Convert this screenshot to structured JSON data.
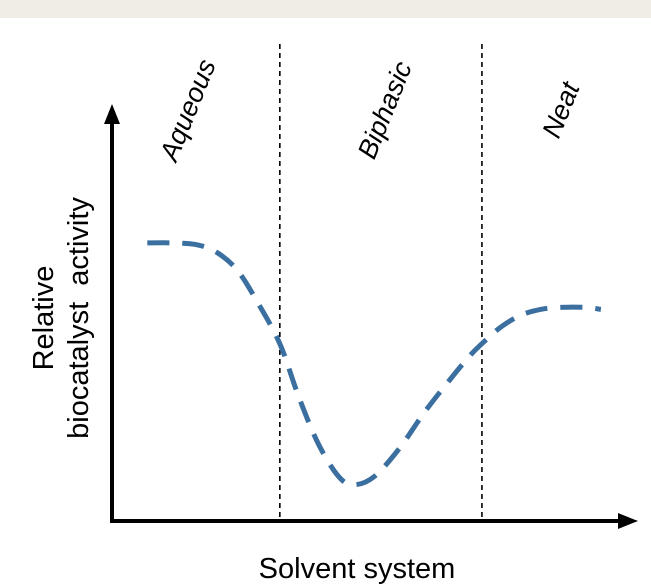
{
  "chart_data": {
    "type": "line",
    "title": "",
    "xlabel": "Solvent system",
    "ylabel_lines": [
      "Relative",
      "biocatalyst  activity"
    ],
    "regions": [
      {
        "label": "Aqueous",
        "x_start": 0.0,
        "x_end": 0.333
      },
      {
        "label": "Biphasic",
        "x_start": 0.333,
        "x_end": 0.734
      },
      {
        "label": "Neat",
        "x_start": 0.734,
        "x_end": 1.0
      }
    ],
    "region_boundaries": [
      0.333,
      0.734
    ],
    "xlim": [
      0,
      1
    ],
    "ylim": [
      0,
      1
    ],
    "grid": false,
    "series": [
      {
        "style": "dashed",
        "color": "#3a6fa0",
        "x": [
          0.07,
          0.12,
          0.17,
          0.21,
          0.25,
          0.29,
          0.333,
          0.37,
          0.41,
          0.45,
          0.48,
          0.52,
          0.57,
          0.62,
          0.67,
          0.71,
          0.734,
          0.77,
          0.81,
          0.85,
          0.89,
          0.94,
          0.97
        ],
        "y": [
          0.69,
          0.69,
          0.685,
          0.665,
          0.62,
          0.54,
          0.44,
          0.31,
          0.19,
          0.11,
          0.09,
          0.11,
          0.18,
          0.27,
          0.35,
          0.41,
          0.44,
          0.48,
          0.51,
          0.525,
          0.53,
          0.53,
          0.525
        ]
      }
    ]
  }
}
